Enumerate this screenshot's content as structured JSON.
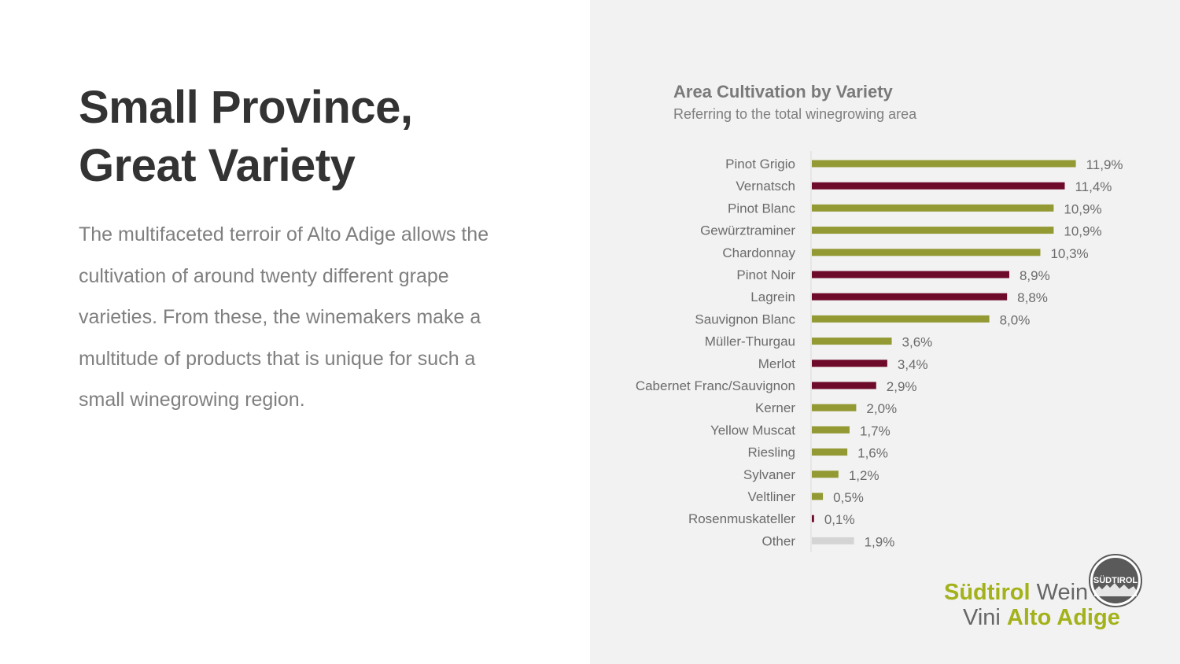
{
  "slide": {
    "headline_line1": "Small Province,",
    "headline_line2": "Great Variety",
    "body": "The multifaceted terroir of Alto Adige allows the cultivation of around twenty different grape varieties. From these, the winemakers make a multitude of products that is unique for such a small winegrowing region."
  },
  "colors": {
    "white_variety": "#939933",
    "red_variety": "#6e0a2a",
    "other": "#d4d4d4",
    "label_text": "#6b6b6b",
    "logo_green": "#a3b21b"
  },
  "chart_data": {
    "type": "bar",
    "orientation": "horizontal",
    "title": "Area Cultivation by Variety",
    "subtitle": "Referring to the total winegrowing area",
    "xlim": [
      0,
      12
    ],
    "grid": false,
    "categories": [
      "Pinot Grigio",
      "Vernatsch",
      "Pinot Blanc",
      "Gewürztraminer",
      "Chardonnay",
      "Pinot Noir",
      "Lagrein",
      "Sauvignon Blanc",
      "Müller-Thurgau",
      "Merlot",
      "Cabernet Franc/Sauvignon",
      "Kerner",
      "Yellow Muscat",
      "Riesling",
      "Sylvaner",
      "Veltliner",
      "Rosenmuskateller",
      "Other"
    ],
    "values": [
      11.9,
      11.4,
      10.9,
      10.9,
      10.3,
      8.9,
      8.8,
      8.0,
      3.6,
      3.4,
      2.9,
      2.0,
      1.7,
      1.6,
      1.2,
      0.5,
      0.1,
      1.9
    ],
    "value_labels": [
      "11,9%",
      "11,4%",
      "10,9%",
      "10,9%",
      "10,3%",
      "8,9%",
      "8,8%",
      "8,0%",
      "3,6%",
      "3,4%",
      "2,9%",
      "2,0%",
      "1,7%",
      "1,6%",
      "1,2%",
      "0,5%",
      "0,1%",
      "1,9%"
    ],
    "color_group": [
      "white",
      "red",
      "white",
      "white",
      "white",
      "red",
      "red",
      "white",
      "white",
      "red",
      "red",
      "white",
      "white",
      "white",
      "white",
      "white",
      "red",
      "other"
    ]
  },
  "logo": {
    "line1_accent": "Südtirol",
    "line1_rest": "Wein",
    "line2_plain": "Vini",
    "line2_accent": "Alto Adige",
    "badge_text": "SÜDTIROL"
  }
}
